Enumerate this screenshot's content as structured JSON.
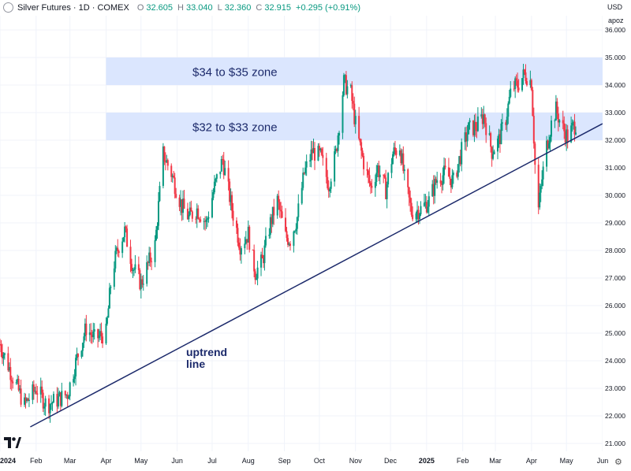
{
  "legend": {
    "symbol": "Silver Futures · 1D · COMEX",
    "o_label": "O",
    "o_value": "32.605",
    "h_label": "H",
    "h_value": "33.040",
    "l_label": "L",
    "l_value": "32.360",
    "c_label": "C",
    "c_value": "32.915",
    "change": "+0.295 (+0.91%)"
  },
  "currency": "USD",
  "scale_mode": "apoz",
  "colors": {
    "up": "#089981",
    "down": "#f23645",
    "zone": "#dbe6fe",
    "trendline": "#1c2a6b",
    "annotation": "#1c2a6b",
    "grid": "#f0f3fa",
    "axis_text": "#131722"
  },
  "chart_data": {
    "type": "candlestick",
    "title": "Silver Futures · 1D · COMEX",
    "xlabel": "",
    "ylabel": "",
    "ylim": [
      21.0,
      36.0
    ],
    "y_ticks": [
      "36.000",
      "35.000",
      "34.000",
      "33.000",
      "32.000",
      "31.000",
      "30.000",
      "29.000",
      "28.000",
      "27.000",
      "26.000",
      "25.000",
      "24.000",
      "23.000",
      "22.000",
      "21.000"
    ],
    "x_ticks": [
      "2024",
      "Feb",
      "Mar",
      "Apr",
      "May",
      "Jun",
      "Jul",
      "Aug",
      "Sep",
      "Oct",
      "Nov",
      "Dec",
      "2025",
      "Feb",
      "Mar",
      "Apr",
      "May",
      "Jun"
    ],
    "x_range": [
      "2024-01-01",
      "2025-06-01"
    ],
    "grid": true,
    "price_path": [
      {
        "date": "2024-01-01",
        "value": 24.6
      },
      {
        "date": "2024-01-12",
        "value": 23.4
      },
      {
        "date": "2024-01-22",
        "value": 22.4
      },
      {
        "date": "2024-02-01",
        "value": 23.0
      },
      {
        "date": "2024-02-10",
        "value": 22.4
      },
      {
        "date": "2024-02-20",
        "value": 22.6
      },
      {
        "date": "2024-02-28",
        "value": 22.8
      },
      {
        "date": "2024-03-07",
        "value": 24.1
      },
      {
        "date": "2024-03-15",
        "value": 25.2
      },
      {
        "date": "2024-03-22",
        "value": 24.8
      },
      {
        "date": "2024-04-01",
        "value": 25.0
      },
      {
        "date": "2024-04-06",
        "value": 27.2
      },
      {
        "date": "2024-04-12",
        "value": 28.2
      },
      {
        "date": "2024-04-17",
        "value": 28.7
      },
      {
        "date": "2024-04-24",
        "value": 27.4
      },
      {
        "date": "2024-05-01",
        "value": 26.8
      },
      {
        "date": "2024-05-08",
        "value": 27.6
      },
      {
        "date": "2024-05-13",
        "value": 28.2
      },
      {
        "date": "2024-05-20",
        "value": 31.5
      },
      {
        "date": "2024-05-27",
        "value": 30.8
      },
      {
        "date": "2024-06-05",
        "value": 29.6
      },
      {
        "date": "2024-06-11",
        "value": 29.2
      },
      {
        "date": "2024-06-18",
        "value": 29.5
      },
      {
        "date": "2024-06-26",
        "value": 29.0
      },
      {
        "date": "2024-07-03",
        "value": 30.3
      },
      {
        "date": "2024-07-10",
        "value": 31.3
      },
      {
        "date": "2024-07-18",
        "value": 29.5
      },
      {
        "date": "2024-07-25",
        "value": 28.2
      },
      {
        "date": "2024-08-01",
        "value": 28.6
      },
      {
        "date": "2024-08-07",
        "value": 27.2
      },
      {
        "date": "2024-08-13",
        "value": 27.6
      },
      {
        "date": "2024-08-20",
        "value": 29.0
      },
      {
        "date": "2024-08-26",
        "value": 29.8
      },
      {
        "date": "2024-09-02",
        "value": 28.5
      },
      {
        "date": "2024-09-06",
        "value": 28.4
      },
      {
        "date": "2024-09-12",
        "value": 29.2
      },
      {
        "date": "2024-09-18",
        "value": 30.8
      },
      {
        "date": "2024-09-25",
        "value": 31.6
      },
      {
        "date": "2024-10-02",
        "value": 31.4
      },
      {
        "date": "2024-10-09",
        "value": 30.4
      },
      {
        "date": "2024-10-15",
        "value": 31.5
      },
      {
        "date": "2024-10-22",
        "value": 34.1
      },
      {
        "date": "2024-10-28",
        "value": 33.7
      },
      {
        "date": "2024-11-02",
        "value": 32.3
      },
      {
        "date": "2024-11-08",
        "value": 31.2
      },
      {
        "date": "2024-11-14",
        "value": 30.3
      },
      {
        "date": "2024-11-20",
        "value": 31.0
      },
      {
        "date": "2024-11-27",
        "value": 30.2
      },
      {
        "date": "2024-12-03",
        "value": 31.5
      },
      {
        "date": "2024-12-09",
        "value": 31.8
      },
      {
        "date": "2024-12-13",
        "value": 30.6
      },
      {
        "date": "2024-12-19",
        "value": 29.4
      },
      {
        "date": "2024-12-27",
        "value": 29.5
      },
      {
        "date": "2025-01-03",
        "value": 29.8
      },
      {
        "date": "2025-01-10",
        "value": 30.6
      },
      {
        "date": "2025-01-17",
        "value": 30.8
      },
      {
        "date": "2025-01-24",
        "value": 30.5
      },
      {
        "date": "2025-01-31",
        "value": 31.6
      },
      {
        "date": "2025-02-06",
        "value": 32.4
      },
      {
        "date": "2025-02-13",
        "value": 32.5
      },
      {
        "date": "2025-02-19",
        "value": 32.9
      },
      {
        "date": "2025-02-26",
        "value": 31.6
      },
      {
        "date": "2025-03-04",
        "value": 32.0
      },
      {
        "date": "2025-03-10",
        "value": 32.8
      },
      {
        "date": "2025-03-15",
        "value": 33.9
      },
      {
        "date": "2025-03-20",
        "value": 34.0
      },
      {
        "date": "2025-03-26",
        "value": 34.4
      },
      {
        "date": "2025-03-29",
        "value": 34.3
      },
      {
        "date": "2025-04-01",
        "value": 34.1
      },
      {
        "date": "2025-04-03",
        "value": 32.1
      },
      {
        "date": "2025-04-05",
        "value": 30.1
      },
      {
        "date": "2025-04-07",
        "value": 29.5
      },
      {
        "date": "2025-04-10",
        "value": 30.6
      },
      {
        "date": "2025-04-14",
        "value": 31.8
      },
      {
        "date": "2025-04-18",
        "value": 32.6
      },
      {
        "date": "2025-04-22",
        "value": 33.1
      },
      {
        "date": "2025-04-27",
        "value": 32.5
      },
      {
        "date": "2025-05-02",
        "value": 32.1
      },
      {
        "date": "2025-05-07",
        "value": 32.5
      },
      {
        "date": "2025-05-11",
        "value": 32.7
      }
    ],
    "zones": [
      {
        "label": "$34 to $35 zone",
        "from": 34.0,
        "to": 35.0,
        "start": "2024-04-01",
        "end": "2025-06-01"
      },
      {
        "label": "$32 to $33 zone",
        "from": 32.0,
        "to": 33.0,
        "start": "2024-04-01",
        "end": "2025-06-01"
      }
    ],
    "trendline": {
      "label_line1": "uptrend",
      "label_line2": "line",
      "start": {
        "date": "2024-01-27",
        "value": 21.6
      },
      "end": {
        "date": "2025-06-01",
        "value": 32.6
      }
    }
  }
}
